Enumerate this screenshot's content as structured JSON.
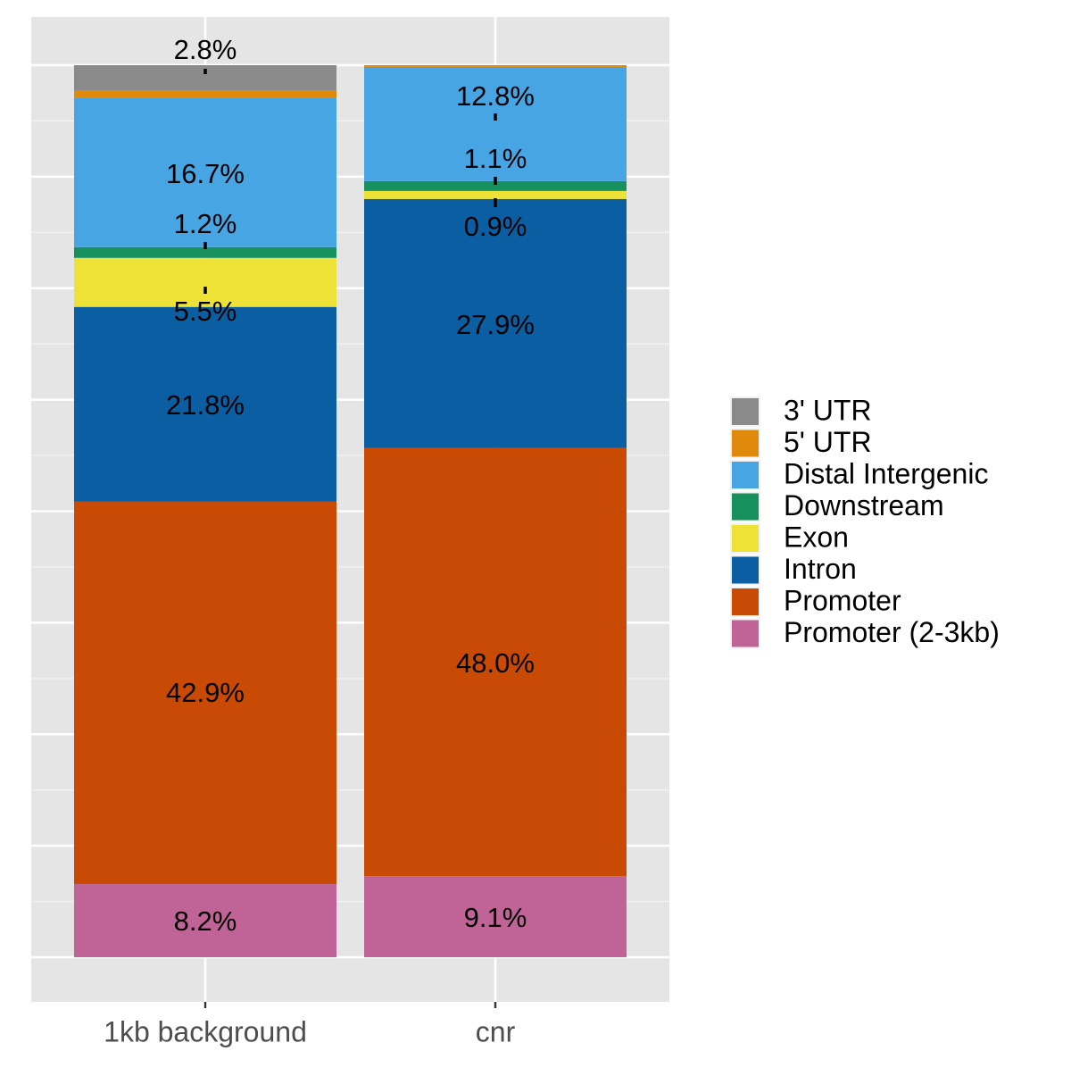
{
  "chart_data": {
    "type": "bar",
    "stacked": true,
    "categories": [
      "1kb background",
      "cnr"
    ],
    "ylim": [
      0,
      100
    ],
    "grid": true,
    "legend_position": "right",
    "series": [
      {
        "name": "Promoter (2-3kb)",
        "color": "#C06497",
        "values": [
          8.2,
          9.1
        ],
        "labels": [
          "8.2%",
          "9.1%"
        ]
      },
      {
        "name": "Promoter",
        "color": "#C94A05",
        "values": [
          42.9,
          48.0
        ],
        "labels": [
          "42.9%",
          "48.0%"
        ]
      },
      {
        "name": "Intron",
        "color": "#0B5EA2",
        "values": [
          21.8,
          27.9
        ],
        "labels": [
          "21.8%",
          "27.9%"
        ]
      },
      {
        "name": "Exon",
        "color": "#EEE236",
        "values": [
          5.5,
          0.9
        ],
        "labels": [
          "5.5%",
          "0.9%"
        ]
      },
      {
        "name": "Downstream",
        "color": "#16915E",
        "values": [
          1.2,
          1.1
        ],
        "labels": [
          "1.2%",
          "1.1%"
        ]
      },
      {
        "name": "Distal Intergenic",
        "color": "#48A5E3",
        "values": [
          16.7,
          12.8
        ],
        "labels": [
          "16.7%",
          "12.8%"
        ]
      },
      {
        "name": "5' UTR",
        "color": "#E08A0C",
        "values": [
          0.9,
          0.2
        ],
        "labels": [
          "",
          ""
        ]
      },
      {
        "name": "3' UTR",
        "color": "#8A8A8A",
        "values": [
          2.8,
          0.0
        ],
        "labels": [
          "2.8%",
          ""
        ]
      }
    ],
    "legend_order": [
      "3' UTR",
      "5' UTR",
      "Distal Intergenic",
      "Downstream",
      "Exon",
      "Intron",
      "Promoter",
      "Promoter (2-3kb)"
    ]
  }
}
